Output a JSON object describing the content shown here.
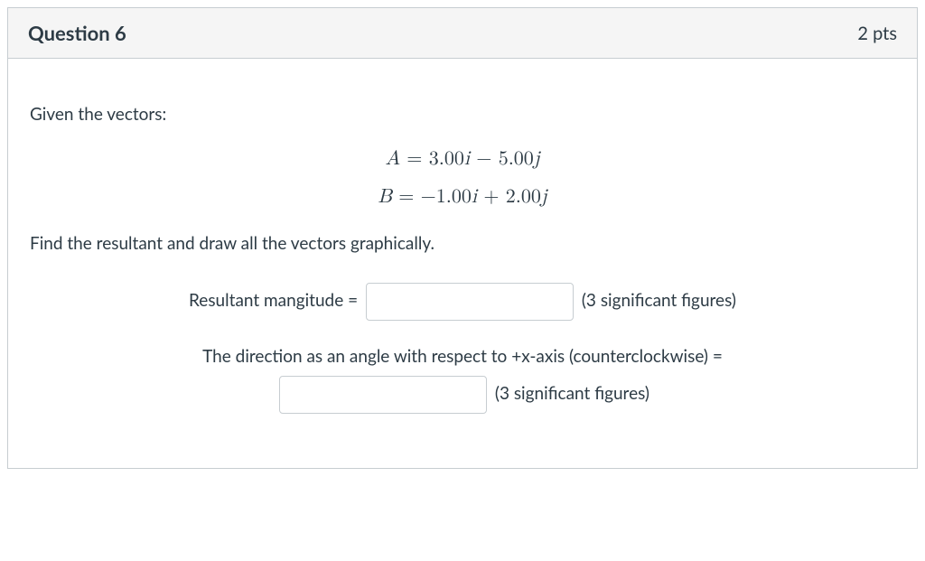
{
  "header": {
    "title": "Question 6",
    "points": "2 pts"
  },
  "body": {
    "intro": "Given the vectors:",
    "equationA_lhs": "A",
    "equationA_eq": " = ",
    "equationA_rhs_1": "3.00",
    "equationA_rhs_i": "i",
    "equationA_rhs_op": " − ",
    "equationA_rhs_2": "5.00",
    "equationA_rhs_j": "j",
    "equationB_lhs": "B",
    "equationB_eq": " = ",
    "equationB_rhs_1": "−1.00",
    "equationB_rhs_i": "i",
    "equationB_rhs_op": " + ",
    "equationB_rhs_2": "2.00",
    "equationB_rhs_j": "j",
    "instruction": "Find the resultant and draw all the vectors graphically.",
    "magnitude_label": "Resultant mangitude = ",
    "sigfig_note": "(3 significant figures)",
    "direction_label": "The direction as an angle with respect to +x-axis (counterclockwise) ="
  },
  "style": {
    "border_color": "#c7cdd1",
    "header_bg": "#f5f5f5",
    "text_color": "#2d3b45",
    "body_bg": "#ffffff",
    "title_fontsize": 22,
    "body_fontsize": 19,
    "input_width": 230,
    "input_height": 42
  }
}
